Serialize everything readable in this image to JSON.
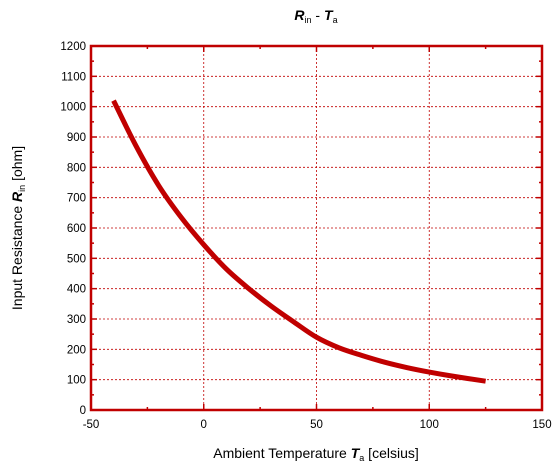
{
  "chart_data": {
    "type": "line",
    "title": {
      "sym1": "R",
      "sub1": "in",
      "sep": " - ",
      "sym2": "T",
      "sub2": "a"
    },
    "xlabel": {
      "prefix": "Ambient Temperature ",
      "sym": "T",
      "sub": "a",
      "suffix": " [celsius]"
    },
    "ylabel": {
      "prefix": "Input Resistance ",
      "sym": "R",
      "sub": "in",
      "suffix": " [ohm]"
    },
    "xlim": [
      -50,
      150
    ],
    "ylim": [
      0,
      1200
    ],
    "xticks": [
      -50,
      0,
      50,
      100,
      150
    ],
    "yticks": [
      0,
      100,
      200,
      300,
      400,
      500,
      600,
      700,
      800,
      900,
      1000,
      1100,
      1200
    ],
    "grid": true,
    "colors": {
      "line": "#c00000",
      "axes": "#c00000",
      "grid": "#c00000"
    },
    "series": [
      {
        "x": [
          -40,
          -30,
          -20,
          -10,
          0,
          10,
          20,
          30,
          40,
          50,
          60,
          70,
          80,
          90,
          100,
          110,
          125
        ],
        "y": [
          1020,
          870,
          740,
          635,
          545,
          465,
          400,
          342,
          290,
          240,
          205,
          180,
          158,
          140,
          125,
          112,
          95
        ]
      }
    ]
  }
}
